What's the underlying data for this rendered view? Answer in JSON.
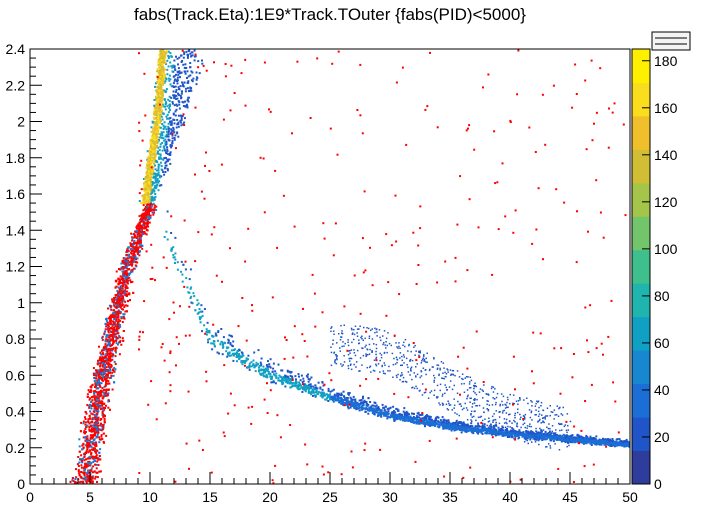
{
  "chart_data": {
    "type": "heatmap",
    "title": "fabs(Track.Eta):1E9*Track.TOuter {fabs(PID)<5000}",
    "xlabel": "",
    "ylabel": "",
    "xlim": [
      0,
      50
    ],
    "ylim": [
      0,
      2.4
    ],
    "x_ticks": [
      "0",
      "5",
      "10",
      "15",
      "20",
      "25",
      "30",
      "35",
      "40",
      "45",
      "50"
    ],
    "y_ticks": [
      "0",
      "0.2",
      "0.4",
      "0.6",
      "0.8",
      "1",
      "1.2",
      "1.4",
      "1.6",
      "1.8",
      "2",
      "2.2",
      "2.4"
    ],
    "colorbar": {
      "range": [
        0,
        185
      ],
      "ticks": [
        "0",
        "20",
        "40",
        "60",
        "80",
        "100",
        "120",
        "140",
        "160",
        "180"
      ],
      "colors": [
        "#2e3c9c",
        "#1f55c9",
        "#1a6ed6",
        "#1687d0",
        "#10a0c4",
        "#1fb4ad",
        "#3fbf8c",
        "#73c56c",
        "#a5c54a",
        "#d1be35",
        "#f0c02c",
        "#fadd1c",
        "#fff000"
      ]
    },
    "features": [
      {
        "name": "band-branch-high",
        "x": [
          9.5,
          10.5,
          11.0
        ],
        "y": [
          1.55,
          2.0,
          2.4
        ]
      },
      {
        "name": "band-branch-fall",
        "x": [
          10.5,
          15,
          20,
          25,
          30,
          35,
          40,
          45,
          50
        ],
        "y": [
          1.5,
          0.8,
          0.6,
          0.48,
          0.38,
          0.32,
          0.28,
          0.25,
          0.22
        ]
      },
      {
        "name": "band-branch-rise",
        "x": [
          4.5,
          6,
          8,
          10
        ],
        "y": [
          0.0,
          0.6,
          1.2,
          1.55
        ]
      },
      {
        "name": "secondary-arc",
        "x": [
          25,
          30,
          35,
          40,
          45
        ],
        "y": [
          0.9,
          0.85,
          0.65,
          0.5,
          0.42
        ]
      }
    ],
    "highlight_color": "#ff0000"
  }
}
